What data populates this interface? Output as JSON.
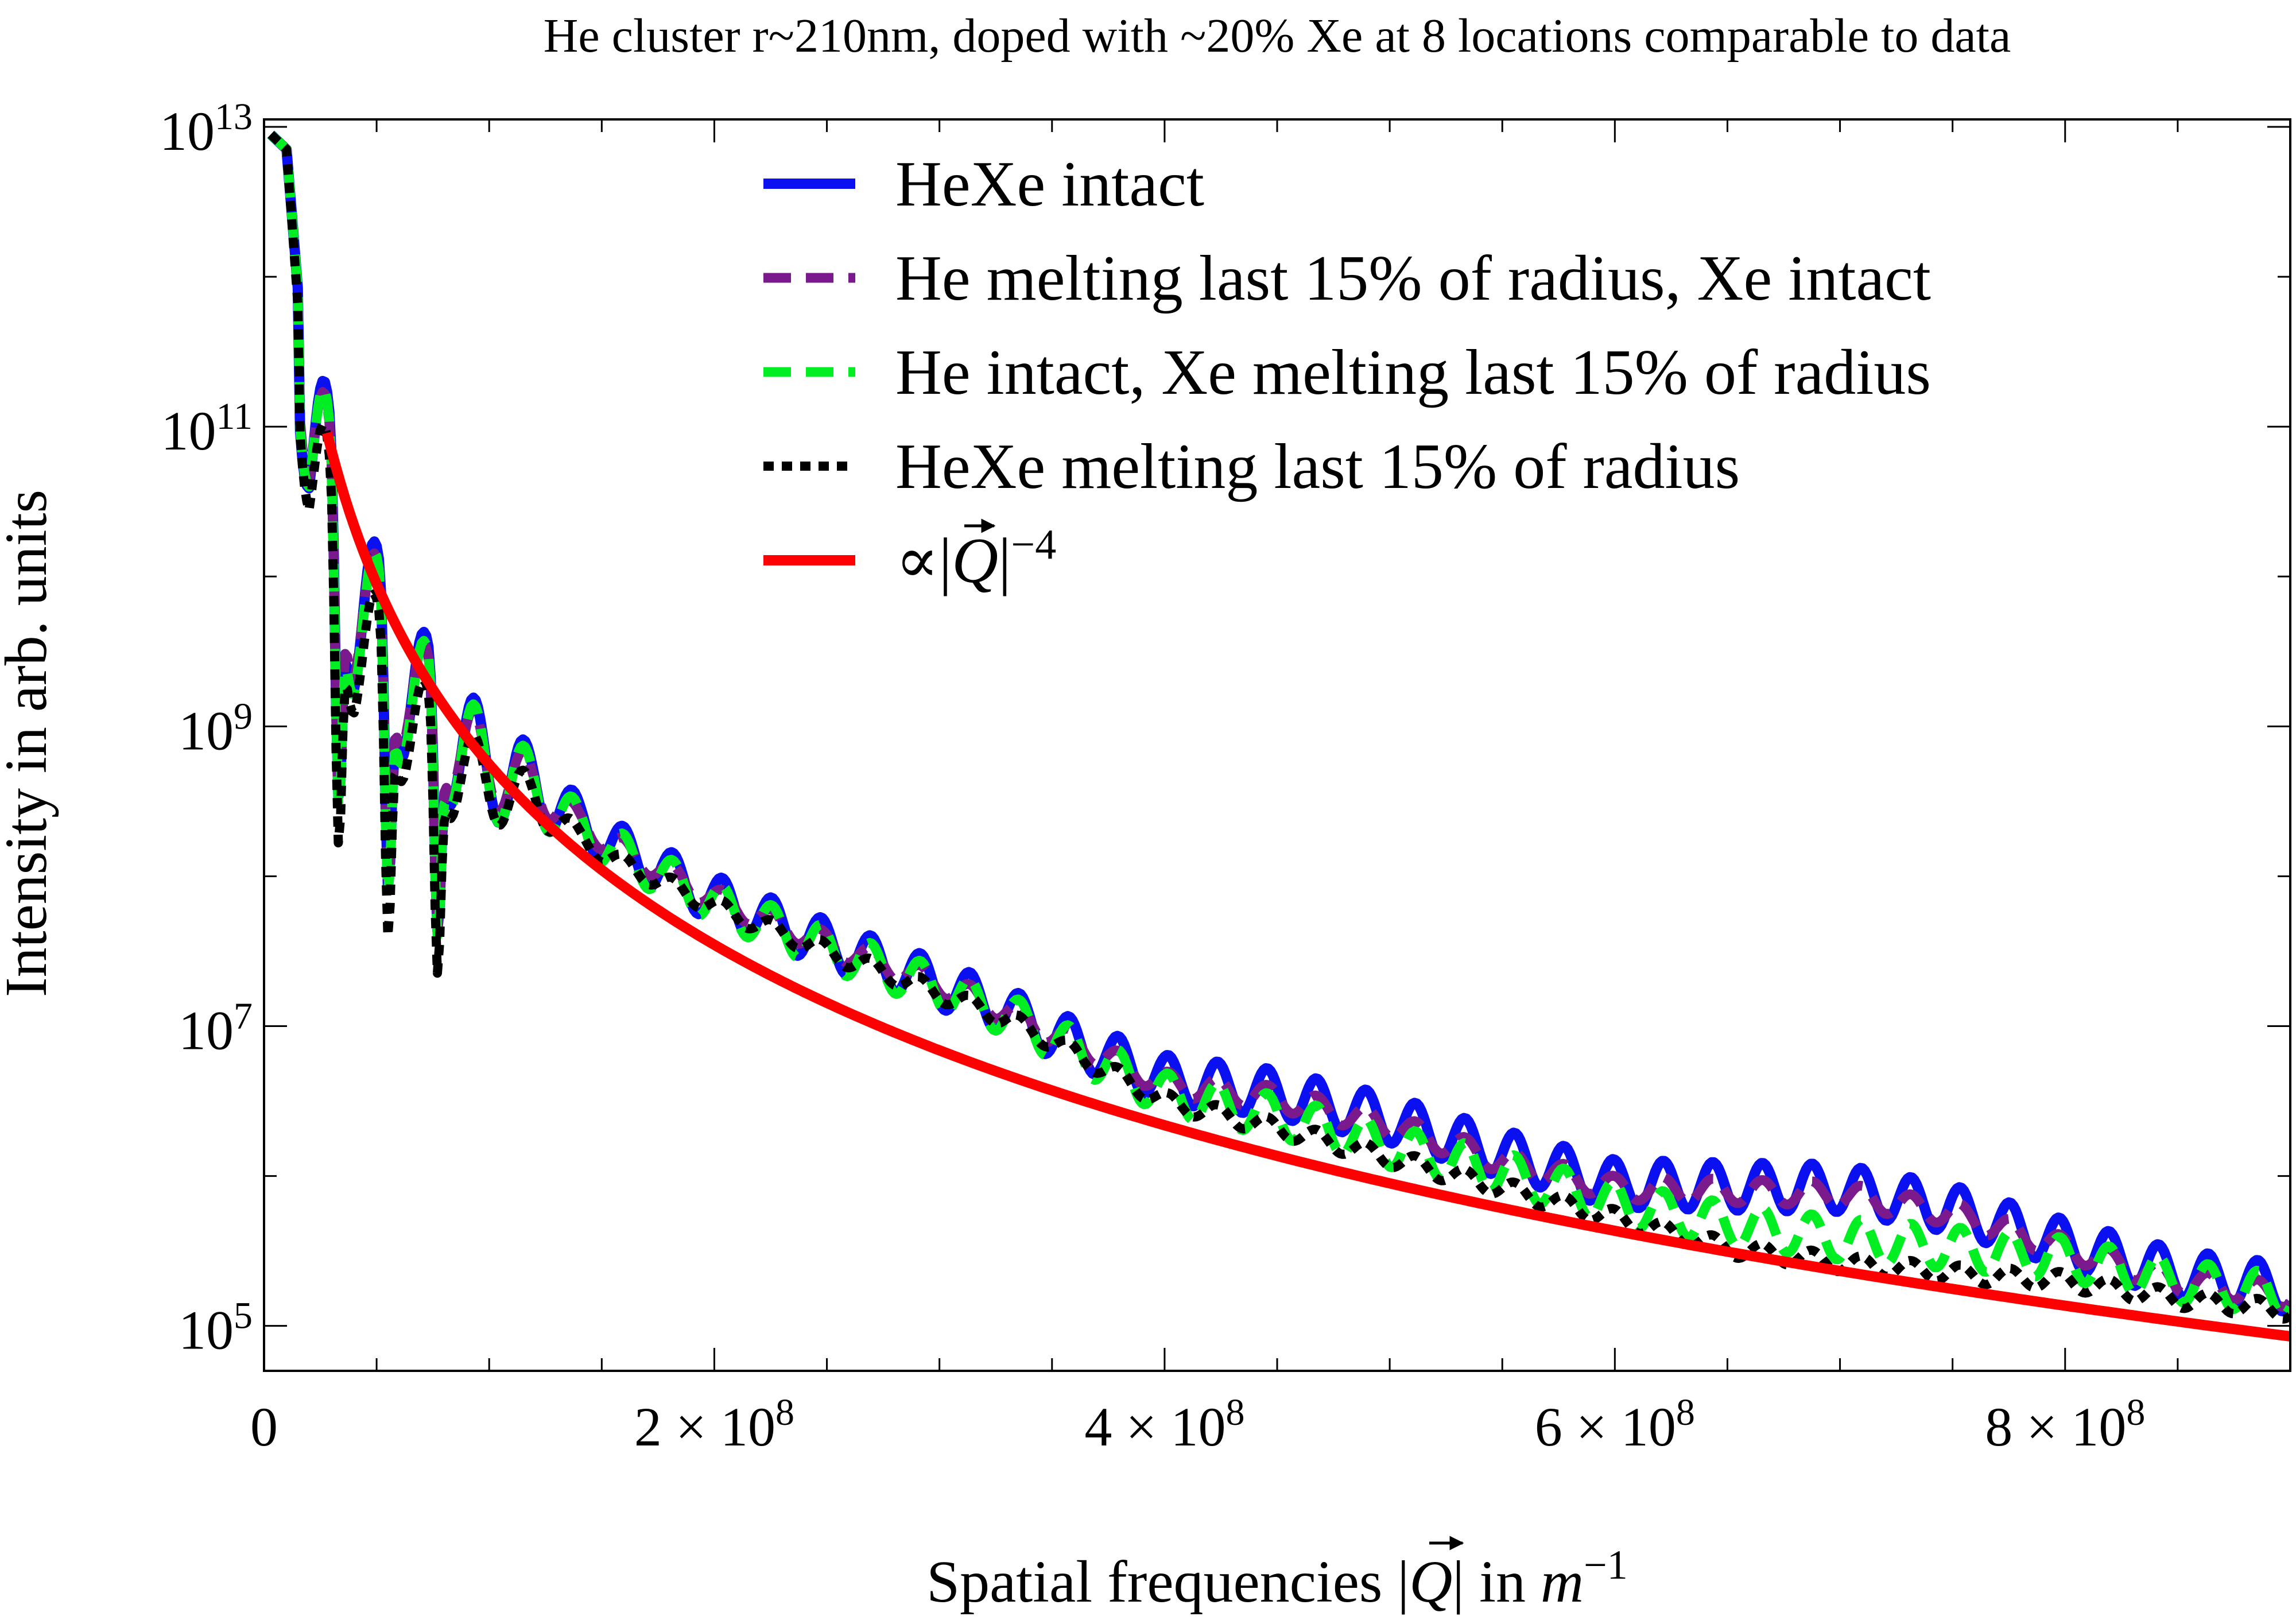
{
  "chart_data": {
    "type": "line",
    "title": "He cluster r~210nm, doped with ~20% Xe at 8 locations comparable to data",
    "xlabel": {
      "prefix": "Spatial frequencies |",
      "symbol": "Q",
      "middle": "| in ",
      "unit": "m",
      "exponent": "−1"
    },
    "ylabel": "Intensity in arb. units",
    "xlim": [
      0,
      900000000
    ],
    "ylim_log10": [
      4.7,
      13.05
    ],
    "y_scale": "log",
    "grid": false,
    "legend_position": "top-right",
    "x_ticks": [
      {
        "value": 0,
        "label": "0"
      },
      {
        "value": 200000000,
        "mantissa": "2",
        "times": "×",
        "base": "10",
        "exp": "8"
      },
      {
        "value": 400000000,
        "mantissa": "4",
        "times": "×",
        "base": "10",
        "exp": "8"
      },
      {
        "value": 600000000,
        "mantissa": "6",
        "times": "×",
        "base": "10",
        "exp": "8"
      },
      {
        "value": 800000000,
        "mantissa": "8",
        "times": "×",
        "base": "10",
        "exp": "8"
      }
    ],
    "x_minor_ticks": [
      50000000,
      100000000,
      150000000,
      250000000,
      300000000,
      350000000,
      450000000,
      500000000,
      550000000,
      650000000,
      700000000,
      750000000,
      850000000
    ],
    "y_ticks": [
      {
        "log10": 5,
        "base": "10",
        "exp": "5"
      },
      {
        "log10": 7,
        "base": "10",
        "exp": "7"
      },
      {
        "log10": 9,
        "base": "10",
        "exp": "9"
      },
      {
        "log10": 11,
        "base": "10",
        "exp": "11"
      },
      {
        "log10": 13,
        "base": "10",
        "exp": "13"
      }
    ],
    "y_minor_ticks_log10": [
      6,
      8,
      10,
      12
    ],
    "series": [
      {
        "name": "HeXe intact",
        "color": "#0a10f0",
        "style": "solid",
        "envelope": [
          [
            3000000,
            12.95
          ],
          [
            10000000,
            12.85
          ],
          [
            20000000,
            11.0
          ],
          [
            30000000,
            10.4
          ],
          [
            40000000,
            9.85
          ],
          [
            60000000,
            9.35
          ],
          [
            80000000,
            8.95
          ],
          [
            100000000,
            8.72
          ],
          [
            120000000,
            8.6
          ],
          [
            150000000,
            8.25
          ],
          [
            200000000,
            7.85
          ],
          [
            250000000,
            7.55
          ],
          [
            300000000,
            7.28
          ],
          [
            330000000,
            7.1
          ],
          [
            350000000,
            6.95
          ],
          [
            400000000,
            6.65
          ],
          [
            450000000,
            6.55
          ],
          [
            500000000,
            6.38
          ],
          [
            550000000,
            6.15
          ],
          [
            600000000,
            5.95
          ],
          [
            650000000,
            5.93
          ],
          [
            700000000,
            5.92
          ],
          [
            750000000,
            5.78
          ],
          [
            800000000,
            5.55
          ],
          [
            850000000,
            5.35
          ],
          [
            900000000,
            5.25
          ]
        ],
        "oscillation": {
          "period": 22000000,
          "amplitude": 0.16,
          "dip_depth": 0.9
        }
      },
      {
        "name": "He melting last 15% of radius, Xe intact",
        "color": "#7a1a8c",
        "style": "dashed",
        "envelope": [
          [
            3000000,
            12.95
          ],
          [
            10000000,
            12.85
          ],
          [
            20000000,
            11.0
          ],
          [
            30000000,
            10.4
          ],
          [
            40000000,
            9.85
          ],
          [
            60000000,
            9.35
          ],
          [
            80000000,
            8.95
          ],
          [
            100000000,
            8.72
          ],
          [
            120000000,
            8.6
          ],
          [
            150000000,
            8.25
          ],
          [
            200000000,
            7.85
          ],
          [
            250000000,
            7.55
          ],
          [
            300000000,
            7.28
          ],
          [
            330000000,
            7.1
          ],
          [
            350000000,
            6.95
          ],
          [
            400000000,
            6.62
          ],
          [
            450000000,
            6.52
          ],
          [
            500000000,
            6.34
          ],
          [
            550000000,
            6.1
          ],
          [
            600000000,
            5.92
          ],
          [
            650000000,
            5.9
          ],
          [
            700000000,
            5.88
          ],
          [
            750000000,
            5.75
          ],
          [
            800000000,
            5.52
          ],
          [
            850000000,
            5.3
          ],
          [
            900000000,
            5.2
          ]
        ],
        "oscillation": {
          "period": 22000000,
          "amplitude": 0.08,
          "dip_depth": 0.9
        }
      },
      {
        "name": "He intact, Xe melting last 15% of radius",
        "color": "#00ee22",
        "style": "dashed",
        "envelope": [
          [
            3000000,
            12.95
          ],
          [
            10000000,
            12.85
          ],
          [
            20000000,
            11.0
          ],
          [
            30000000,
            10.35
          ],
          [
            40000000,
            9.8
          ],
          [
            60000000,
            9.3
          ],
          [
            80000000,
            8.92
          ],
          [
            100000000,
            8.7
          ],
          [
            120000000,
            8.58
          ],
          [
            150000000,
            8.22
          ],
          [
            200000000,
            7.82
          ],
          [
            250000000,
            7.52
          ],
          [
            300000000,
            7.25
          ],
          [
            330000000,
            7.08
          ],
          [
            350000000,
            6.92
          ],
          [
            400000000,
            6.55
          ],
          [
            450000000,
            6.4
          ],
          [
            500000000,
            6.2
          ],
          [
            550000000,
            6.02
          ],
          [
            600000000,
            5.82
          ],
          [
            650000000,
            5.68
          ],
          [
            700000000,
            5.58
          ],
          [
            750000000,
            5.52
          ],
          [
            800000000,
            5.45
          ],
          [
            850000000,
            5.3
          ],
          [
            900000000,
            5.2
          ]
        ],
        "oscillation": {
          "period": 22000000,
          "amplitude": 0.14,
          "dip_depth": 0.9
        }
      },
      {
        "name": "HeXe melting last 15% of radius",
        "color": "#000000",
        "style": "dotted",
        "envelope": [
          [
            3000000,
            12.95
          ],
          [
            10000000,
            12.85
          ],
          [
            20000000,
            10.8
          ],
          [
            30000000,
            10.2
          ],
          [
            40000000,
            9.6
          ],
          [
            60000000,
            9.1
          ],
          [
            80000000,
            8.75
          ],
          [
            100000000,
            8.6
          ],
          [
            120000000,
            8.5
          ],
          [
            150000000,
            8.15
          ],
          [
            200000000,
            7.8
          ],
          [
            250000000,
            7.5
          ],
          [
            300000000,
            7.22
          ],
          [
            330000000,
            7.05
          ],
          [
            350000000,
            6.9
          ],
          [
            400000000,
            6.5
          ],
          [
            450000000,
            6.32
          ],
          [
            500000000,
            6.12
          ],
          [
            550000000,
            5.92
          ],
          [
            600000000,
            5.72
          ],
          [
            650000000,
            5.52
          ],
          [
            700000000,
            5.42
          ],
          [
            750000000,
            5.35
          ],
          [
            800000000,
            5.3
          ],
          [
            850000000,
            5.18
          ],
          [
            900000000,
            5.1
          ]
        ],
        "oscillation": {
          "period": 22000000,
          "amplitude": 0.06,
          "dip_depth": 0.95
        }
      },
      {
        "name_prefix": "∝|",
        "name_symbol": "Q",
        "name_suffix": "|",
        "name_exponent": "−4",
        "color": "#ff0000",
        "style": "solid",
        "power_law": {
          "exponent": -4,
          "x0": 900000000,
          "log10_y0": 4.93
        }
      }
    ]
  }
}
